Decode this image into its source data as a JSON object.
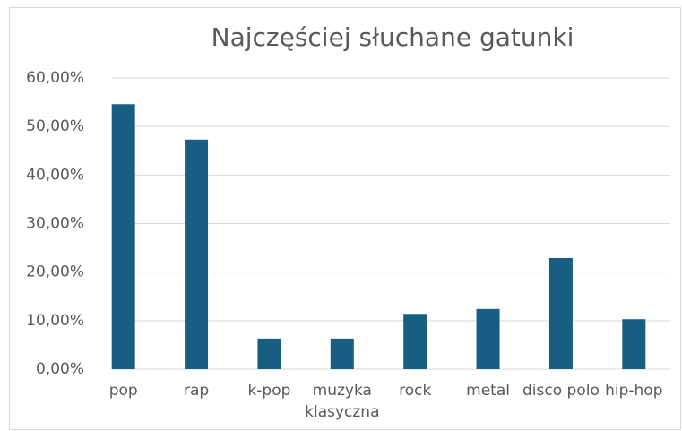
{
  "chart_data": {
    "type": "bar",
    "title": "Najczęściej słuchane gatunki",
    "categories": [
      "pop",
      "rap",
      "k-pop",
      "muzyka klasyczna",
      "rock",
      "metal",
      "disco polo",
      "hip-hop"
    ],
    "values": [
      54.6,
      47.3,
      6.3,
      6.3,
      11.4,
      12.4,
      22.9,
      10.3
    ],
    "color": "#175e82",
    "ylim": [
      0,
      60
    ],
    "yticks": [
      {
        "value": 0,
        "label": "0,00%"
      },
      {
        "value": 10,
        "label": "10,00%"
      },
      {
        "value": 20,
        "label": "20,00%"
      },
      {
        "value": 30,
        "label": "30,00%"
      },
      {
        "value": 40,
        "label": "40,00%"
      },
      {
        "value": 50,
        "label": "50,00%"
      },
      {
        "value": 60,
        "label": "60,00%"
      }
    ],
    "grid": true
  }
}
